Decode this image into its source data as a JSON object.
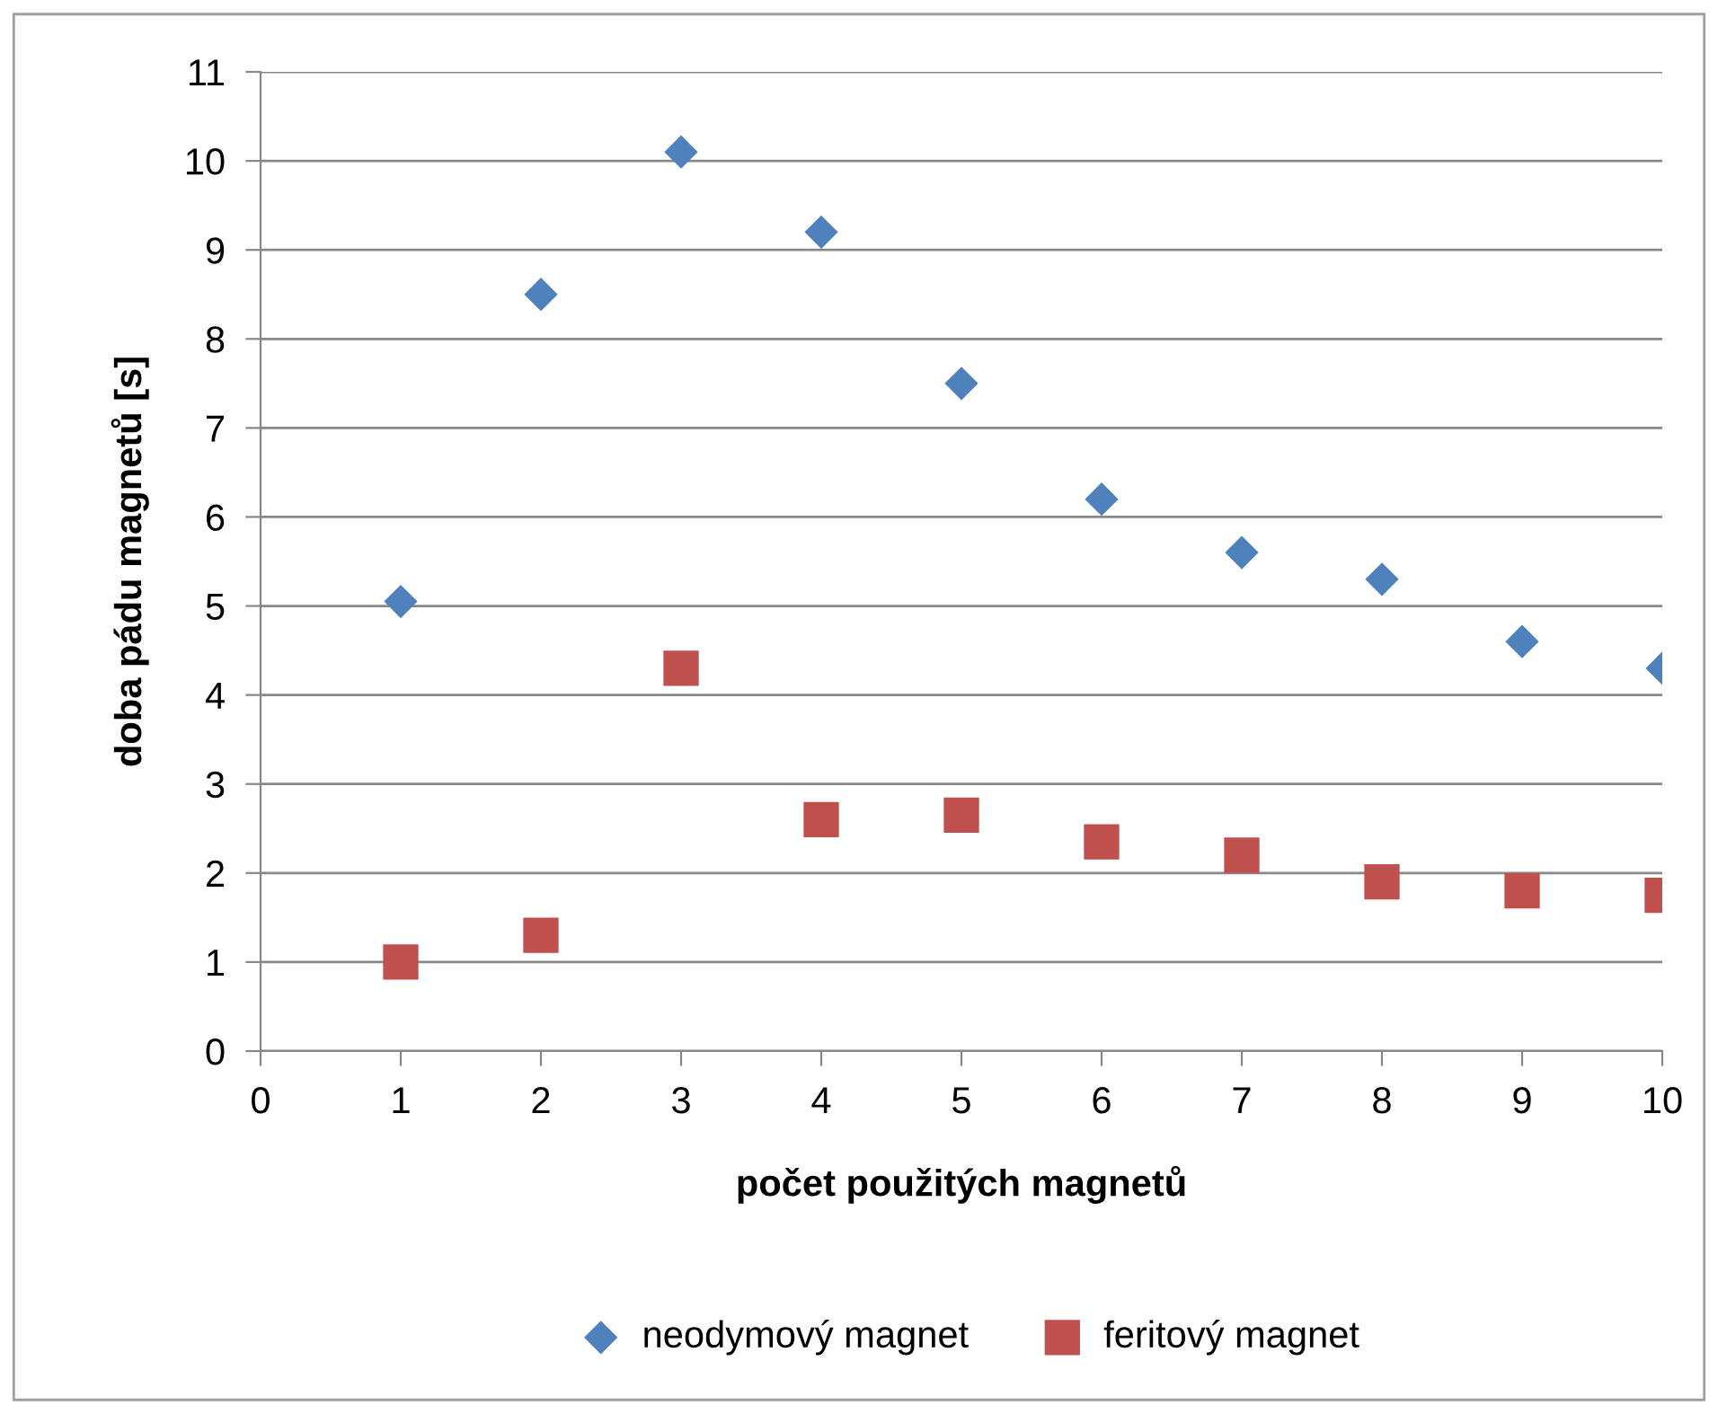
{
  "chart_data": {
    "type": "scatter",
    "xlabel": "počet použitých magnetů",
    "ylabel": "doba pádu magnetů [s]",
    "x": [
      1,
      2,
      3,
      4,
      5,
      6,
      7,
      8,
      9,
      10
    ],
    "series": [
      {
        "name": "neodymový magnet",
        "color": "#4f81bd",
        "marker": "diamond",
        "values": [
          5.05,
          8.5,
          10.1,
          9.2,
          7.5,
          6.2,
          5.6,
          5.3,
          4.6,
          4.3
        ]
      },
      {
        "name": "feritový magnet",
        "color": "#c0504d",
        "marker": "square",
        "values": [
          1.0,
          1.3,
          4.3,
          2.6,
          2.65,
          2.35,
          2.2,
          1.9,
          1.8,
          1.75
        ]
      }
    ],
    "xlim": [
      0,
      10
    ],
    "xticks": [
      0,
      1,
      2,
      3,
      4,
      5,
      6,
      7,
      8,
      9,
      10
    ],
    "ylim": [
      0,
      11
    ],
    "yticks": [
      0,
      1,
      2,
      3,
      4,
      5,
      6,
      7,
      8,
      9,
      10,
      11
    ],
    "grid": "y",
    "legend": "bottom"
  }
}
